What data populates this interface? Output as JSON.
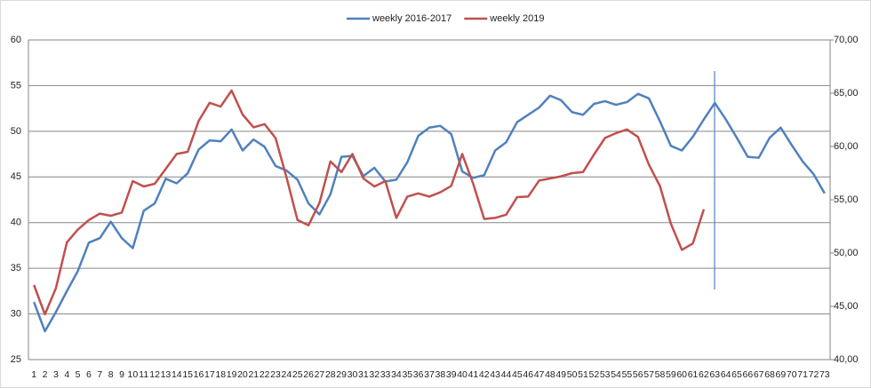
{
  "chart_data": {
    "type": "line",
    "categories": [
      "1",
      "2",
      "3",
      "4",
      "5",
      "6",
      "7",
      "8",
      "9",
      "10",
      "11",
      "12",
      "13",
      "14",
      "15",
      "16",
      "17",
      "18",
      "19",
      "20",
      "21",
      "22",
      "23",
      "24",
      "25",
      "26",
      "27",
      "28",
      "29",
      "30",
      "31",
      "32",
      "33",
      "34",
      "35",
      "36",
      "37",
      "38",
      "39",
      "40",
      "41",
      "42",
      "43",
      "44",
      "45",
      "46",
      "47",
      "48",
      "49",
      "50",
      "51",
      "52",
      "53",
      "54",
      "55",
      "56",
      "57",
      "58",
      "59",
      "60",
      "61",
      "62",
      "63",
      "64",
      "65",
      "66",
      "67",
      "68",
      "69",
      "70",
      "71",
      "72",
      "73"
    ],
    "series": [
      {
        "name": "weekly 2016-2017",
        "color": "#4f81bd",
        "axis": "y",
        "values": [
          31.3,
          28.1,
          30.2,
          32.5,
          34.7,
          37.8,
          38.3,
          40.1,
          38.3,
          37.2,
          41.3,
          42.1,
          44.8,
          44.3,
          45.4,
          48.0,
          49.0,
          48.9,
          50.2,
          47.9,
          49.1,
          48.3,
          46.2,
          45.7,
          44.7,
          42.1,
          40.9,
          43.1,
          47.2,
          47.3,
          45.1,
          46.0,
          44.5,
          44.7,
          46.6,
          49.5,
          50.4,
          50.6,
          49.7,
          45.6,
          44.9,
          45.2,
          47.9,
          48.8,
          51.0,
          51.8,
          52.6,
          53.9,
          53.4,
          52.1,
          51.8,
          53.0,
          53.3,
          52.9,
          53.2,
          54.1,
          53.6,
          51.1,
          48.4,
          47.9,
          49.4,
          51.3,
          53.1,
          51.3,
          49.3,
          47.2,
          47.1,
          49.3,
          50.4,
          48.5,
          46.7,
          45.3,
          43.2
        ]
      },
      {
        "name": "weekly 2019",
        "color": "#c0504d",
        "axis": "y2",
        "values": [
          47.0,
          44.25,
          46.7,
          51.0,
          52.2,
          53.1,
          53.7,
          53.5,
          53.8,
          56.75,
          56.25,
          56.5,
          57.9,
          59.3,
          59.5,
          62.4,
          64.1,
          63.75,
          65.25,
          63.0,
          61.8,
          62.1,
          60.8,
          57.1,
          53.1,
          52.6,
          54.7,
          58.6,
          57.6,
          59.3,
          57.0,
          56.25,
          56.75,
          53.3,
          55.3,
          55.6,
          55.3,
          55.7,
          56.3,
          59.3,
          56.5,
          53.2,
          53.3,
          53.6,
          55.25,
          55.3,
          56.8,
          57.0,
          57.2,
          57.5,
          57.6,
          59.25,
          60.8,
          61.25,
          61.6,
          60.9,
          58.3,
          56.3,
          52.75,
          50.3,
          50.9,
          54.1,
          null,
          null,
          null,
          null,
          null,
          null,
          null,
          null,
          null,
          null,
          null
        ]
      }
    ],
    "ylim": [
      25,
      60
    ],
    "yticks": [
      25,
      30,
      35,
      40,
      45,
      50,
      55,
      60
    ],
    "y2lim": [
      40,
      70
    ],
    "y2ticks": [
      {
        "value": 40,
        "label": "40,00"
      },
      {
        "value": 45,
        "label": "45,00"
      },
      {
        "value": 50,
        "label": "50,00"
      },
      {
        "value": 55,
        "label": "55,00"
      },
      {
        "value": 60,
        "label": "60,00"
      },
      {
        "value": 65,
        "label": "65,00"
      },
      {
        "value": 70,
        "label": "70,00"
      }
    ],
    "grid": true,
    "legend": "top"
  }
}
